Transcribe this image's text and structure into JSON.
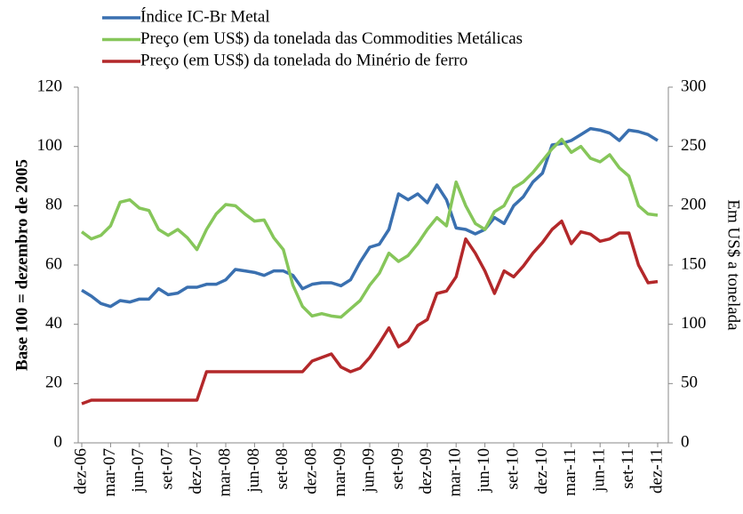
{
  "chart_data": {
    "type": "line",
    "categories": [
      "dez-06",
      null,
      null,
      "mar-07",
      null,
      null,
      "jun-07",
      null,
      null,
      "set-07",
      null,
      null,
      "dez-07",
      null,
      null,
      "mar-08",
      null,
      null,
      "jun-08",
      null,
      null,
      "set-08",
      null,
      null,
      "dez-08",
      null,
      null,
      "mar-09",
      null,
      null,
      "jun-09",
      null,
      null,
      "set-09",
      null,
      null,
      "dez-09",
      null,
      null,
      "mar-10",
      null,
      null,
      "jun-10",
      null,
      null,
      "set-10",
      null,
      null,
      "dez-10",
      null,
      null,
      "mar-11",
      null,
      null,
      "jun-11",
      null,
      null,
      "set-11",
      null,
      null,
      "dez-11"
    ],
    "series": [
      {
        "name": "Índice IC-Br Metal",
        "color": "#3a70b0",
        "values": [
          51.5,
          49.5,
          47,
          46,
          48,
          47.5,
          48.5,
          48.5,
          52,
          50,
          50.5,
          52.5,
          52.5,
          53.5,
          53.5,
          55,
          58.5,
          58,
          57.5,
          56.5,
          58,
          58,
          56.5,
          52,
          53.5,
          54,
          54,
          53,
          55,
          61,
          66,
          67,
          72,
          84,
          82,
          84,
          81,
          87,
          82,
          72.5,
          72,
          70.5,
          72,
          76,
          74,
          80,
          83,
          88,
          91,
          100.5,
          101,
          102,
          104,
          106,
          105.5,
          104.5,
          102,
          105.5,
          105,
          104,
          102
        ]
      },
      {
        "name": "Preço (em US$) da tonelada das Commodities Metálicas",
        "color": "#86c65a",
        "axis": "y2",
        "values": [
          178,
          172,
          175,
          183,
          203,
          205,
          198,
          196,
          180,
          175,
          180,
          173,
          163,
          180,
          193,
          201,
          200,
          193,
          187,
          188,
          173,
          163,
          133,
          115,
          107,
          109,
          107,
          106,
          113,
          120,
          133,
          143,
          160,
          153,
          158,
          168,
          180,
          190,
          183,
          220,
          200,
          185,
          180,
          195,
          200,
          215,
          220,
          228,
          238,
          248,
          256,
          245,
          250,
          240,
          237,
          243,
          232,
          225,
          200,
          193,
          192
        ]
      },
      {
        "name": "Preço (em US$) da tonelada do Minério de ferro",
        "color": "#b3282a",
        "axis": "y2",
        "values": [
          33,
          36,
          36,
          36,
          36,
          36,
          36,
          36,
          36,
          36,
          36,
          36,
          36,
          60,
          60,
          60,
          60,
          60,
          60,
          60,
          60,
          60,
          60,
          60,
          69,
          72,
          75,
          64,
          60,
          63,
          72,
          84,
          97,
          81,
          86,
          99,
          104,
          126,
          128,
          140,
          172,
          160,
          145,
          126,
          145,
          140,
          149,
          160,
          169,
          180,
          187,
          168,
          178,
          176,
          170,
          172,
          177,
          177,
          150,
          135,
          136
        ]
      }
    ],
    "ylabel": "Base 100 = dezembro de 2005",
    "y2label": "Em US$ a tonelada",
    "ylim": [
      0,
      120
    ],
    "yticks": [
      0,
      20,
      40,
      60,
      80,
      100,
      120
    ],
    "y2lim": [
      0,
      300
    ],
    "y2ticks": [
      0,
      50,
      100,
      150,
      200,
      250,
      300
    ],
    "grid": false,
    "legend": "top"
  }
}
